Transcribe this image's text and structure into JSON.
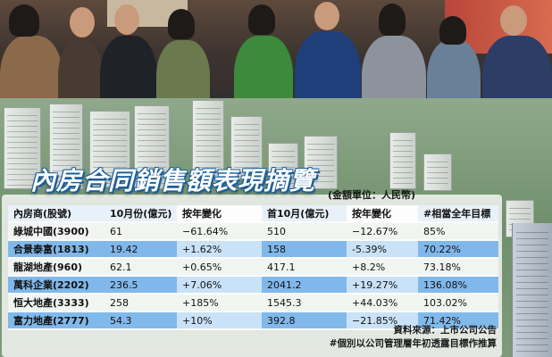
{
  "title": "內房合同銷售額表現摘覽",
  "unit_note": "(金額單位：人民幣)",
  "table": {
    "headers": [
      "內房商(股號)",
      "10月份(億元)",
      "按年變化",
      "首10月(億元)",
      "按年變化",
      "#相當全年目標"
    ],
    "rows": [
      [
        "綠城中國(3900)",
        "61",
        "−61.64%",
        "510",
        "−12.67%",
        "85%"
      ],
      [
        "合景泰富(1813)",
        "19.42",
        "+1.62%",
        "158",
        "-5.39%",
        "70.22%"
      ],
      [
        "龍湖地產(960)",
        "62.1",
        "+0.65%",
        "417.1",
        "+8.2%",
        "73.18%"
      ],
      [
        "萬科企業(2202)",
        "236.5",
        "+7.06%",
        "2041.2",
        "+19.27%",
        "136.08%"
      ],
      [
        "恒大地產(3333)",
        "258",
        "+185%",
        "1545.3",
        "+44.03%",
        "103.02%"
      ],
      [
        "富力地產(2777)",
        "54.3",
        "+10%",
        "392.8",
        "−21.85%",
        "71.42%"
      ]
    ]
  },
  "source": "資料來源：上市公司公告",
  "footnote": "#個別以公司管理層年初透露目標作推算"
}
